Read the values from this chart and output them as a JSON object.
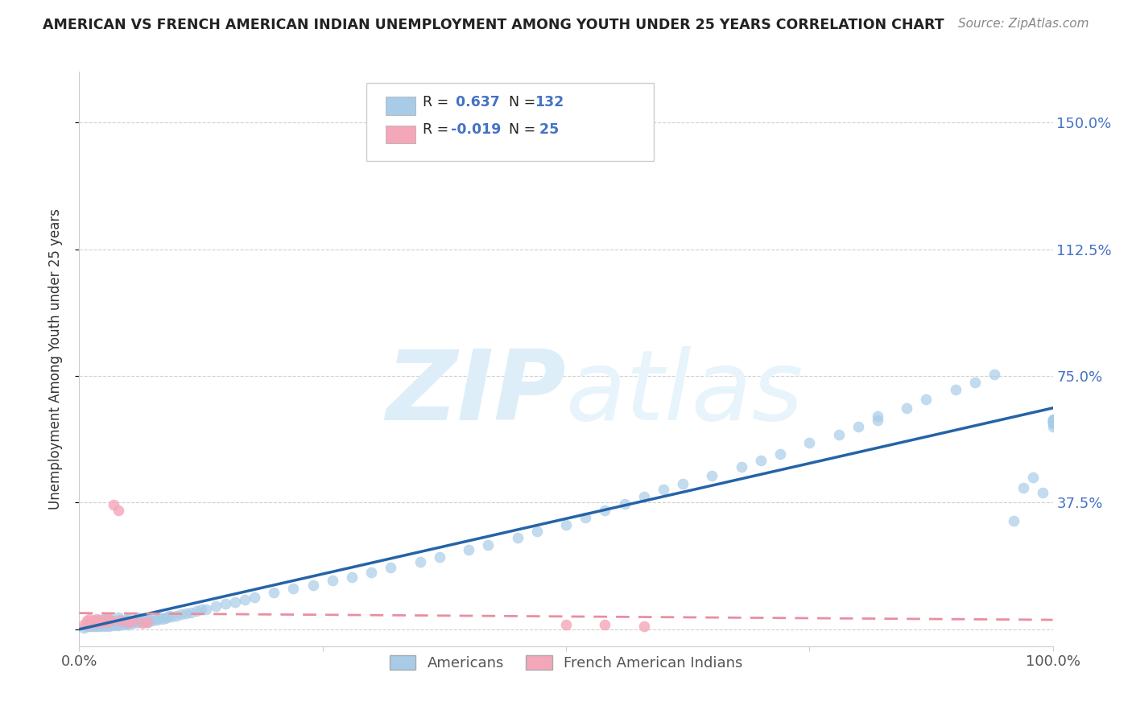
{
  "title": "AMERICAN VS FRENCH AMERICAN INDIAN UNEMPLOYMENT AMONG YOUTH UNDER 25 YEARS CORRELATION CHART",
  "source": "Source: ZipAtlas.com",
  "ylabel": "Unemployment Among Youth under 25 years",
  "xlim": [
    0.0,
    1.0
  ],
  "ylim": [
    -0.05,
    1.65
  ],
  "ytick_positions": [
    0.0,
    0.375,
    0.75,
    1.125,
    1.5
  ],
  "yticklabels": [
    "",
    "37.5%",
    "75.0%",
    "112.5%",
    "150.0%"
  ],
  "americans_R": 0.637,
  "americans_N": 132,
  "french_indians_R": -0.019,
  "french_indians_N": 25,
  "blue_color": "#a8cce8",
  "pink_color": "#f4a7b9",
  "line_blue": "#2563a8",
  "line_pink": "#e88fa0",
  "watermark_zip": "ZIP",
  "watermark_atlas": "atlas",
  "watermark_color": "#ddeef8",
  "background_color": "#ffffff",
  "grid_color": "#d0d0d0",
  "americans_x": [
    0.005,
    0.008,
    0.01,
    0.01,
    0.012,
    0.012,
    0.015,
    0.015,
    0.015,
    0.018,
    0.018,
    0.018,
    0.02,
    0.02,
    0.02,
    0.02,
    0.022,
    0.022,
    0.025,
    0.025,
    0.025,
    0.025,
    0.025,
    0.028,
    0.028,
    0.028,
    0.03,
    0.03,
    0.03,
    0.03,
    0.03,
    0.032,
    0.032,
    0.035,
    0.035,
    0.035,
    0.038,
    0.038,
    0.04,
    0.04,
    0.04,
    0.04,
    0.042,
    0.042,
    0.045,
    0.045,
    0.048,
    0.048,
    0.05,
    0.05,
    0.05,
    0.052,
    0.055,
    0.055,
    0.058,
    0.06,
    0.06,
    0.06,
    0.062,
    0.065,
    0.065,
    0.068,
    0.07,
    0.07,
    0.072,
    0.075,
    0.078,
    0.08,
    0.082,
    0.085,
    0.088,
    0.09,
    0.092,
    0.095,
    0.1,
    0.105,
    0.11,
    0.115,
    0.12,
    0.125,
    0.13,
    0.14,
    0.15,
    0.16,
    0.17,
    0.18,
    0.2,
    0.22,
    0.24,
    0.26,
    0.28,
    0.3,
    0.32,
    0.35,
    0.37,
    0.4,
    0.42,
    0.45,
    0.47,
    0.5,
    0.52,
    0.54,
    0.56,
    0.58,
    0.6,
    0.62,
    0.65,
    0.68,
    0.7,
    0.72,
    0.75,
    0.78,
    0.8,
    0.82,
    0.82,
    0.85,
    0.87,
    0.9,
    0.92,
    0.94,
    0.96,
    0.97,
    0.98,
    0.99,
    1.0,
    1.0,
    1.0,
    1.0,
    1.0,
    1.0,
    1.0,
    1.0
  ],
  "americans_y": [
    0.005,
    0.01,
    0.008,
    0.015,
    0.01,
    0.018,
    0.008,
    0.012,
    0.02,
    0.01,
    0.015,
    0.022,
    0.008,
    0.015,
    0.02,
    0.028,
    0.012,
    0.02,
    0.01,
    0.015,
    0.02,
    0.025,
    0.03,
    0.012,
    0.018,
    0.025,
    0.01,
    0.015,
    0.02,
    0.025,
    0.032,
    0.015,
    0.022,
    0.012,
    0.018,
    0.025,
    0.015,
    0.022,
    0.012,
    0.018,
    0.025,
    0.035,
    0.018,
    0.028,
    0.015,
    0.022,
    0.018,
    0.028,
    0.015,
    0.022,
    0.03,
    0.02,
    0.018,
    0.025,
    0.022,
    0.02,
    0.028,
    0.035,
    0.025,
    0.022,
    0.03,
    0.025,
    0.022,
    0.032,
    0.028,
    0.025,
    0.03,
    0.028,
    0.035,
    0.03,
    0.032,
    0.035,
    0.04,
    0.038,
    0.04,
    0.045,
    0.048,
    0.05,
    0.055,
    0.058,
    0.06,
    0.068,
    0.075,
    0.08,
    0.088,
    0.095,
    0.11,
    0.12,
    0.13,
    0.145,
    0.155,
    0.168,
    0.182,
    0.2,
    0.215,
    0.235,
    0.25,
    0.272,
    0.29,
    0.31,
    0.33,
    0.352,
    0.37,
    0.392,
    0.415,
    0.43,
    0.455,
    0.48,
    0.5,
    0.52,
    0.552,
    0.575,
    0.6,
    0.62,
    0.632,
    0.655,
    0.68,
    0.71,
    0.732,
    0.755,
    0.32,
    0.42,
    0.45,
    0.405,
    0.6,
    0.61,
    0.612,
    0.614,
    0.616,
    0.618,
    0.62,
    0.622
  ],
  "french_x": [
    0.005,
    0.008,
    0.01,
    0.01,
    0.012,
    0.015,
    0.015,
    0.018,
    0.018,
    0.02,
    0.022,
    0.025,
    0.028,
    0.03,
    0.032,
    0.035,
    0.04,
    0.042,
    0.05,
    0.055,
    0.065,
    0.07,
    0.5,
    0.54,
    0.58
  ],
  "french_y": [
    0.015,
    0.025,
    0.018,
    0.03,
    0.022,
    0.018,
    0.025,
    0.02,
    0.03,
    0.025,
    0.02,
    0.028,
    0.022,
    0.03,
    0.025,
    0.368,
    0.352,
    0.025,
    0.02,
    0.025,
    0.018,
    0.022,
    0.015,
    0.015,
    0.01
  ],
  "blue_line_x0": 0.0,
  "blue_line_y0": 0.0,
  "blue_line_x1": 1.0,
  "blue_line_y1": 0.655,
  "pink_line_x0": 0.0,
  "pink_line_y0": 0.048,
  "pink_line_x1": 1.0,
  "pink_line_y1": 0.028
}
